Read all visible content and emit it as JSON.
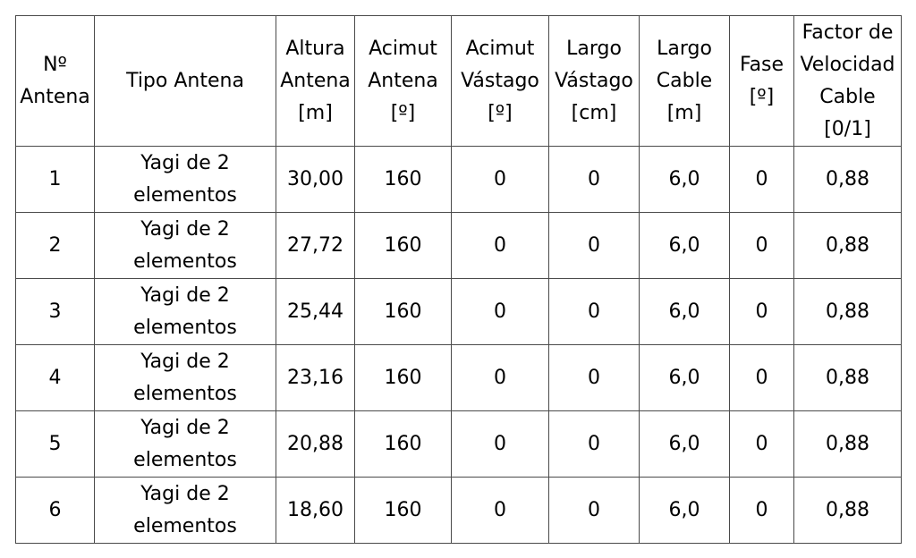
{
  "table": {
    "headers": [
      "Nº\nAntena",
      "Tipo Antena",
      "Altura\nAntena\n[m]",
      "Acimut\nAntena\n[º]",
      "Acimut\nVástago\n[º]",
      "Largo\nVástago\n[cm]",
      "Largo\nCable\n[m]",
      "Fase\n[º]",
      "Factor de\nVelocidad\nCable\n[0/1]"
    ],
    "rows": [
      [
        "1",
        "Yagi de 2\nelementos",
        "30,00",
        "160",
        "0",
        "0",
        "6,0",
        "0",
        "0,88"
      ],
      [
        "2",
        "Yagi de 2\nelementos",
        "27,72",
        "160",
        "0",
        "0",
        "6,0",
        "0",
        "0,88"
      ],
      [
        "3",
        "Yagi de 2\nelementos",
        "25,44",
        "160",
        "0",
        "0",
        "6,0",
        "0",
        "0,88"
      ],
      [
        "4",
        "Yagi de 2\nelementos",
        "23,16",
        "160",
        "0",
        "0",
        "6,0",
        "0",
        "0,88"
      ],
      [
        "5",
        "Yagi de 2\nelementos",
        "20,88",
        "160",
        "0",
        "0",
        "6,0",
        "0",
        "0,88"
      ],
      [
        "6",
        "Yagi de 2\nelementos",
        "18,60",
        "160",
        "0",
        "0",
        "6,0",
        "0",
        "0,88"
      ]
    ]
  }
}
